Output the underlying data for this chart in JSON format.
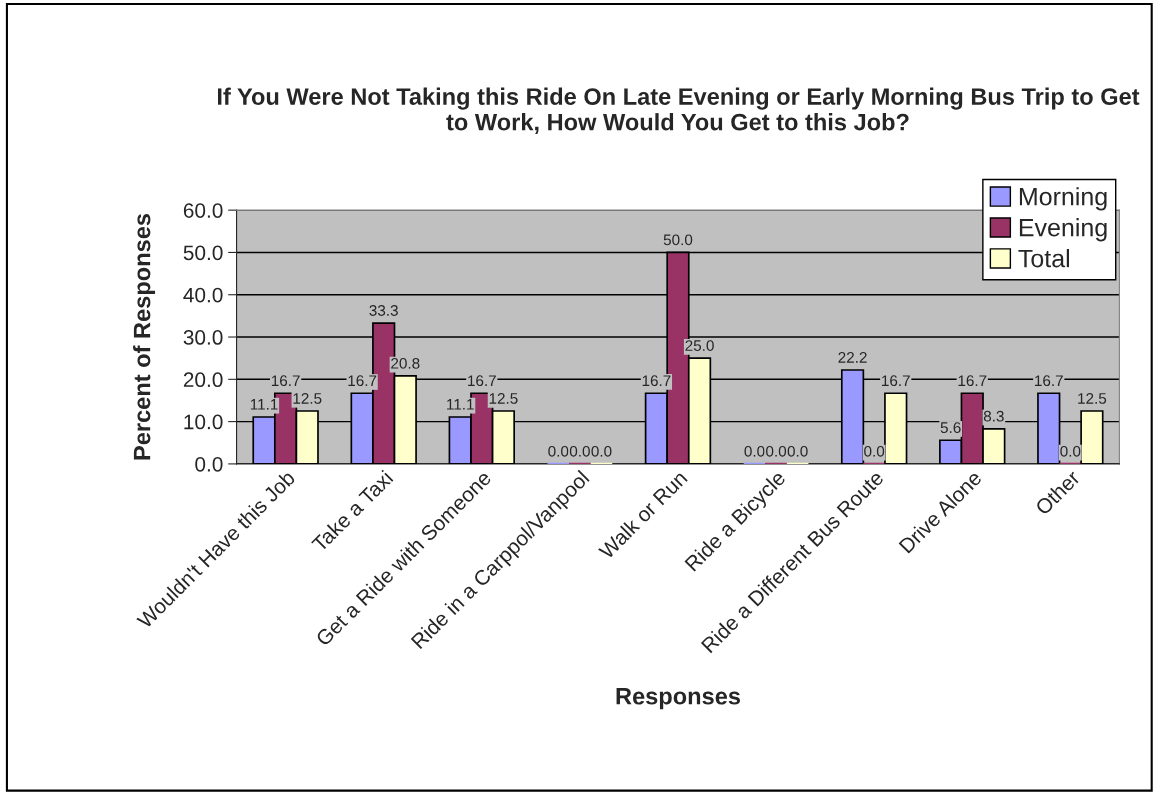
{
  "chart_data": {
    "type": "bar",
    "title": "If You Were Not Taking this Ride On Late Evening or Early Morning Bus Trip to Get to Work, How Would You Get to this Job?",
    "xlabel": "Responses",
    "ylabel": "Percent of Responses",
    "categories": [
      "Wouldn't Have this Job",
      "Take a Taxi",
      "Get a Ride with Someone",
      "Ride in a Carppol/Vanpool",
      "Walk or Run",
      "Ride a Bicycle",
      "Ride a Different Bus Route",
      "Drive Alone",
      "Other"
    ],
    "series": [
      {
        "name": "Morning",
        "color": "#9999ff",
        "values": [
          11.1,
          16.7,
          11.1,
          0.0,
          16.7,
          0.0,
          22.2,
          5.6,
          16.7
        ],
        "value_labels": [
          "11.1",
          "16.7",
          "11.1",
          "0.0",
          "16.7",
          "0.0",
          "22.2",
          "5.6",
          "16.7"
        ]
      },
      {
        "name": "Evening",
        "color": "#993366",
        "values": [
          16.7,
          33.3,
          16.7,
          0.0,
          50.0,
          0.0,
          0.0,
          16.7,
          0.0
        ],
        "value_labels": [
          "16.7",
          "33.3",
          "16.7",
          "0.0",
          "50.0",
          "0.0",
          "0.0",
          "16.7",
          "0.0"
        ]
      },
      {
        "name": "Total",
        "color": "#ffffcc",
        "values": [
          12.5,
          20.8,
          12.5,
          0.0,
          25.0,
          0.0,
          16.7,
          8.3,
          12.5
        ],
        "value_labels": [
          "12.5",
          "20.8",
          "12.5",
          "0.0",
          "25.0",
          "0.0",
          "16.7",
          "8.3",
          "12.5"
        ]
      }
    ],
    "ylim": [
      0,
      60
    ],
    "yticks": [
      {
        "value": 0,
        "label": "0.0"
      },
      {
        "value": 10,
        "label": "10.0"
      },
      {
        "value": 20,
        "label": "20.0"
      },
      {
        "value": 30,
        "label": "30.0"
      },
      {
        "value": 40,
        "label": "40.0"
      },
      {
        "value": 50,
        "label": "50.0"
      },
      {
        "value": 60,
        "label": "60.0"
      }
    ],
    "grid": "y",
    "legend": "top right"
  }
}
